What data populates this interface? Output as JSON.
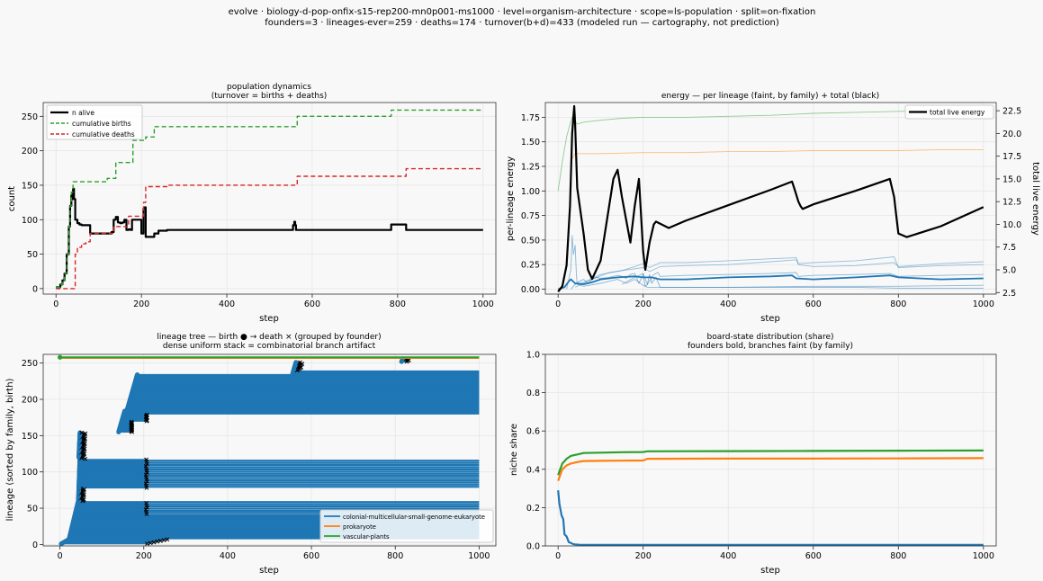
{
  "figure": {
    "suptitle_line1": "evolve · biology-d-pop-onfix-s15-rep200-mn0p001-ms1000 · level=organism-architecture · scope=ls-population · split=on-fixation",
    "suptitle_line2": "founders=3 · lineages-ever=259 · deaths=174 · turnover(b+d)=433   (modeled run — cartography, not prediction)"
  },
  "colors": {
    "alive": "#000000",
    "births": "#2ca02c",
    "deaths": "#d62728",
    "euk": "#1f77b4",
    "prok": "#ff7f0e",
    "plants": "#2ca02c",
    "axes_bg": "#f8f8f8",
    "grid": "#e6e6e6"
  },
  "chart_data": [
    {
      "id": "population",
      "type": "line",
      "title": "population dynamics",
      "subtitle": "(turnover = births + deaths)",
      "xlabel": "step",
      "ylabel": "count",
      "xlim": [
        -30,
        1030
      ],
      "ylim": [
        -8,
        270
      ],
      "xticks": [
        0,
        200,
        400,
        600,
        800,
        1000
      ],
      "yticks": [
        0,
        50,
        100,
        150,
        200,
        250
      ],
      "grid": true,
      "legend_position": "upper-left",
      "series": [
        {
          "name": "n alive",
          "style": "solid",
          "x": [
            0,
            10,
            15,
            20,
            25,
            30,
            33,
            36,
            38,
            40,
            42,
            45,
            50,
            55,
            60,
            70,
            80,
            100,
            120,
            130,
            135,
            140,
            145,
            150,
            155,
            160,
            165,
            170,
            175,
            178,
            190,
            200,
            204,
            205,
            208,
            210,
            215,
            225,
            230,
            240,
            250,
            260,
            300,
            350,
            400,
            450,
            500,
            550,
            555,
            558,
            560,
            562,
            570,
            600,
            650,
            700,
            750,
            780,
            785,
            800,
            815,
            820,
            850,
            900,
            950,
            1000
          ],
          "y": [
            2,
            6,
            12,
            22,
            50,
            90,
            120,
            135,
            130,
            145,
            130,
            100,
            95,
            93,
            92,
            92,
            80,
            80,
            80,
            82,
            100,
            104,
            96,
            95,
            96,
            100,
            85,
            86,
            85,
            100,
            100,
            80,
            80,
            116,
            118,
            75,
            75,
            75,
            80,
            84,
            84,
            85,
            85,
            85,
            85,
            85,
            85,
            85,
            92,
            97,
            92,
            85,
            85,
            85,
            85,
            85,
            85,
            85,
            93,
            93,
            93,
            85,
            85,
            85,
            85,
            85
          ]
        },
        {
          "name": "cumulative births",
          "style": "dashed",
          "x": [
            0,
            10,
            15,
            20,
            25,
            30,
            33,
            36,
            40,
            45,
            70,
            80,
            100,
            120,
            140,
            175,
            180,
            200,
            210,
            230,
            260,
            300,
            400,
            500,
            550,
            565,
            600,
            700,
            780,
            785,
            800,
            900,
            1000
          ],
          "y": [
            2,
            6,
            12,
            22,
            50,
            90,
            120,
            140,
            155,
            155,
            155,
            155,
            155,
            160,
            183,
            183,
            215,
            215,
            220,
            235,
            235,
            235,
            235,
            235,
            235,
            250,
            250,
            250,
            250,
            259,
            259,
            259,
            259
          ]
        },
        {
          "name": "cumulative deaths",
          "style": "dashed",
          "x": [
            0,
            40,
            45,
            50,
            60,
            70,
            80,
            90,
            100,
            130,
            135,
            160,
            170,
            200,
            205,
            210,
            230,
            250,
            260,
            300,
            400,
            500,
            560,
            565,
            600,
            700,
            800,
            815,
            820,
            900,
            1000
          ],
          "y": [
            0,
            0,
            50,
            60,
            65,
            68,
            80,
            80,
            80,
            80,
            90,
            90,
            105,
            105,
            125,
            148,
            148,
            148,
            150,
            150,
            150,
            150,
            150,
            163,
            163,
            163,
            163,
            163,
            174,
            174,
            174
          ]
        }
      ]
    },
    {
      "id": "energy",
      "type": "line",
      "title": "energy — per lineage (faint, by family) + total (black)",
      "xlabel": "step",
      "ylabel": "per-lineage energy",
      "ylabel_right": "total live energy",
      "xlim": [
        -30,
        1030
      ],
      "ylim": [
        -0.05,
        1.9
      ],
      "ylim_right": [
        2.33,
        23.4
      ],
      "xticks": [
        0,
        200,
        400,
        600,
        800,
        1000
      ],
      "yticks": [
        0.0,
        0.25,
        0.5,
        0.75,
        1.0,
        1.25,
        1.5,
        1.75
      ],
      "yticks_right": [
        2.5,
        5.0,
        7.5,
        10.0,
        12.5,
        15.0,
        17.5,
        20.0,
        22.5
      ],
      "grid": true,
      "legend_position": "upper-right",
      "series": [
        {
          "name": "total live energy",
          "axis": "right",
          "x": [
            0,
            10,
            20,
            28,
            33,
            38,
            40,
            45,
            60,
            70,
            80,
            100,
            130,
            140,
            150,
            170,
            180,
            190,
            200,
            205,
            215,
            225,
            230,
            260,
            300,
            400,
            500,
            550,
            555,
            565,
            570,
            575,
            580,
            600,
            700,
            780,
            790,
            795,
            800,
            820,
            900,
            1000
          ],
          "y": [
            2.6,
            3.2,
            5.5,
            12,
            20,
            23,
            21,
            14,
            9,
            5,
            4,
            6,
            15,
            16,
            13,
            8,
            12,
            15,
            7,
            5,
            8,
            10,
            10.3,
            9.6,
            10.4,
            12.1,
            13.8,
            14.7,
            14,
            12.5,
            12,
            11.7,
            11.8,
            12.2,
            13.7,
            15,
            13,
            11,
            9,
            8.6,
            9.8,
            11.9
          ]
        },
        {
          "name": "",
          "family": "vascular-plants",
          "opacity": 0.5,
          "width": 0.9,
          "x": [
            0,
            10,
            20,
            28,
            33,
            38,
            45,
            60,
            100,
            150,
            200,
            300,
            400,
            500,
            600,
            700,
            800,
            1000
          ],
          "y": [
            1.0,
            1.3,
            1.55,
            1.68,
            1.75,
            1.72,
            1.68,
            1.7,
            1.72,
            1.74,
            1.75,
            1.75,
            1.76,
            1.77,
            1.79,
            1.8,
            1.81,
            1.82
          ]
        },
        {
          "name": "",
          "family": "prokaryote",
          "opacity": 0.5,
          "width": 0.9,
          "x": [
            30,
            40,
            60,
            100,
            200,
            300,
            400,
            500,
            600,
            700,
            800,
            900,
            1000
          ],
          "y": [
            1.3,
            1.38,
            1.38,
            1.38,
            1.39,
            1.39,
            1.4,
            1.4,
            1.41,
            1.41,
            1.41,
            1.42,
            1.42
          ]
        },
        {
          "name": "",
          "family": "colonial-multicellular-small-genome-eukaryote",
          "opacity": 1.0,
          "width": 1.8,
          "x": [
            0,
            15,
            25,
            30,
            40,
            60,
            80,
            100,
            140,
            180,
            200,
            220,
            240,
            300,
            400,
            500,
            550,
            560,
            600,
            700,
            780,
            800,
            900,
            1000
          ],
          "y": [
            0.0,
            0.02,
            0.08,
            0.1,
            0.06,
            0.05,
            0.07,
            0.1,
            0.12,
            0.13,
            0.12,
            0.12,
            0.1,
            0.1,
            0.12,
            0.13,
            0.14,
            0.11,
            0.1,
            0.12,
            0.14,
            0.12,
            0.1,
            0.11
          ]
        },
        {
          "name": "",
          "family": "colonial-multicellular-small-genome-eukaryote",
          "opacity": 0.45,
          "width": 0.9,
          "x": [
            40,
            60,
            100,
            150,
            200,
            215,
            240,
            300,
            400,
            500,
            560,
            565,
            600,
            700,
            790,
            800,
            900,
            1000
          ],
          "y": [
            0.05,
            0.07,
            0.15,
            0.19,
            0.22,
            0.18,
            0.23,
            0.24,
            0.25,
            0.28,
            0.3,
            0.25,
            0.23,
            0.24,
            0.27,
            0.23,
            0.26,
            0.28
          ]
        },
        {
          "name": "",
          "family": "colonial-multicellular-small-genome-eukaryote",
          "opacity": 0.45,
          "width": 0.9,
          "x": [
            40,
            80,
            120,
            150,
            180,
            200,
            215,
            240,
            300,
            400,
            500,
            560,
            565,
            600,
            700,
            790,
            800,
            900,
            1000
          ],
          "y": [
            0.02,
            0.1,
            0.17,
            0.19,
            0.23,
            0.26,
            0.22,
            0.27,
            0.27,
            0.29,
            0.31,
            0.32,
            0.26,
            0.27,
            0.29,
            0.33,
            0.22,
            0.24,
            0.25
          ]
        },
        {
          "name": "",
          "family": "colonial-multicellular-small-genome-eukaryote",
          "opacity": 0.5,
          "width": 0.9,
          "x": [
            150,
            180,
            200,
            210,
            225,
            235,
            240,
            300,
            400,
            500,
            560,
            565,
            600,
            700,
            780,
            800,
            900,
            1000
          ],
          "y": [
            0.05,
            0.12,
            0.16,
            0.05,
            0.15,
            0.17,
            0.13,
            0.14,
            0.15,
            0.16,
            0.17,
            0.13,
            0.14,
            0.15,
            0.16,
            0.13,
            0.14,
            0.15
          ]
        },
        {
          "name": "",
          "family": "colonial-multicellular-small-genome-eukaryote",
          "opacity": 0.5,
          "width": 0.9,
          "x": [
            20,
            30,
            33,
            36,
            40,
            43,
            45,
            60,
            100,
            140,
            160,
            180,
            200,
            210,
            300,
            400,
            600,
            800,
            1000
          ],
          "y": [
            0.0,
            0.2,
            0.55,
            0.35,
            0.45,
            0.15,
            0.05,
            0.03,
            0.06,
            0.1,
            0.06,
            0.1,
            0.04,
            0.02,
            0.02,
            0.02,
            0.03,
            0.03,
            0.04
          ]
        },
        {
          "name": "",
          "family": "colonial-multicellular-small-genome-eukaryote",
          "opacity": 0.55,
          "width": 0.9,
          "x": [
            30,
            40,
            50,
            60,
            70,
            80,
            90,
            100,
            120,
            140,
            150,
            160,
            170,
            180,
            190,
            200,
            205,
            210,
            215,
            220,
            230,
            240,
            300,
            400,
            500,
            600,
            700,
            800,
            900,
            1000
          ],
          "y": [
            0.0,
            0.05,
            0.08,
            0.1,
            0.06,
            0.1,
            0.12,
            0.11,
            0.12,
            0.14,
            0.13,
            0.11,
            0.15,
            0.16,
            0.06,
            0.15,
            0.03,
            0.05,
            0.15,
            0.06,
            0.12,
            0.02,
            0.02,
            0.02,
            0.02,
            0.02,
            0.02,
            0.01,
            0.01,
            0.01
          ]
        }
      ]
    },
    {
      "id": "lineage",
      "type": "line",
      "title": "lineage tree — birth ● → death ×  (grouped by founder)",
      "subtitle": "dense uniform stack = combinatorial branch artifact",
      "xlabel": "step",
      "ylabel": "lineage (sorted by family, birth)",
      "xlim": [
        -40,
        1040
      ],
      "ylim": [
        -2,
        262
      ],
      "xticks": [
        0,
        200,
        400,
        600,
        800,
        1000
      ],
      "yticks": [
        0,
        50,
        100,
        150,
        200,
        250
      ],
      "grid": true,
      "legend_position": "lower-right",
      "legend": [
        {
          "name": "colonial-multicellular-small-genome-eukaryote",
          "family": "euk"
        },
        {
          "name": "prokaryote",
          "family": "prok"
        },
        {
          "name": "vascular-plants",
          "family": "plants"
        }
      ],
      "families": {
        "euk_count": 257,
        "prok_index": 257,
        "plants_index": 258,
        "founder_birth": 0,
        "total": 259
      }
    },
    {
      "id": "share",
      "type": "line",
      "title": "board-state distribution (share)",
      "subtitle": "founders bold, branches faint (by family)",
      "xlabel": "step",
      "ylabel": "niche share",
      "xlim": [
        -30,
        1030
      ],
      "ylim": [
        0.0,
        1.0
      ],
      "xticks": [
        0,
        200,
        400,
        600,
        800,
        1000
      ],
      "yticks": [
        0.0,
        0.2,
        0.4,
        0.6,
        0.8,
        1.0
      ],
      "grid": true,
      "series": [
        {
          "name": "",
          "family": "plants",
          "x": [
            0,
            5,
            10,
            20,
            30,
            40,
            50,
            60,
            100,
            150,
            200,
            210,
            400,
            600,
            800,
            1000
          ],
          "y": [
            0.37,
            0.4,
            0.43,
            0.455,
            0.47,
            0.475,
            0.48,
            0.485,
            0.487,
            0.489,
            0.49,
            0.494,
            0.495,
            0.496,
            0.497,
            0.498
          ]
        },
        {
          "name": "",
          "family": "prok",
          "x": [
            0,
            5,
            10,
            20,
            30,
            40,
            50,
            60,
            100,
            150,
            200,
            210,
            400,
            600,
            800,
            1000
          ],
          "y": [
            0.34,
            0.37,
            0.4,
            0.42,
            0.43,
            0.435,
            0.44,
            0.443,
            0.444,
            0.445,
            0.446,
            0.455,
            0.456,
            0.456,
            0.457,
            0.458
          ]
        },
        {
          "name": "",
          "family": "euk",
          "x": [
            0,
            3,
            8,
            12,
            15,
            20,
            25,
            30,
            35,
            40,
            50,
            60,
            100,
            200,
            400,
            600,
            800,
            1000
          ],
          "y": [
            0.29,
            0.22,
            0.16,
            0.14,
            0.06,
            0.05,
            0.02,
            0.015,
            0.01,
            0.008,
            0.006,
            0.005,
            0.005,
            0.005,
            0.005,
            0.005,
            0.005,
            0.005
          ]
        }
      ]
    }
  ]
}
